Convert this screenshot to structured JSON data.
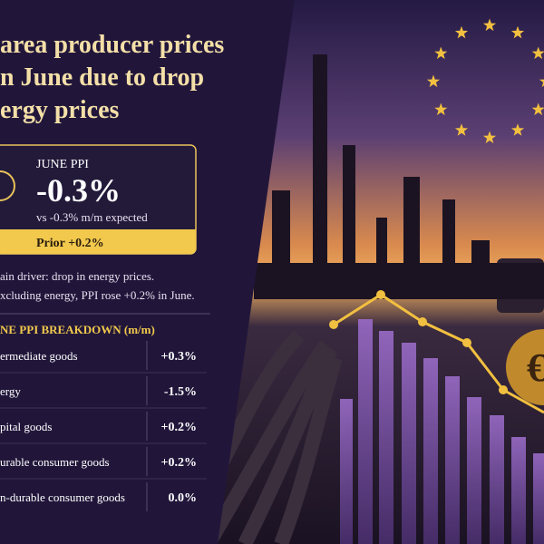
{
  "header": {
    "title_lines": [
      "area producer prices",
      "n June due to drop",
      "ergy prices"
    ]
  },
  "card": {
    "label": "JUNE PPI",
    "value": "-0.3%",
    "expected": "vs -0.3% m/m expected",
    "prior": "Prior +0.2%"
  },
  "notes": [
    "ain driver: drop in energy prices.",
    "xcluding energy, PPI rose +0.2% in June."
  ],
  "breakdown": {
    "title": "NE PPI BREAKDOWN (m/m)",
    "rows": [
      [
        "ermediate goods",
        "+0.3%"
      ],
      [
        "ergy",
        "-1.5%"
      ],
      [
        "pital goods",
        "+0.2%"
      ],
      [
        "urable consumer goods",
        "+0.2%"
      ],
      [
        "n-durable consumer goods",
        "0.0%"
      ]
    ]
  },
  "illustration": {
    "symbol": "€"
  }
}
